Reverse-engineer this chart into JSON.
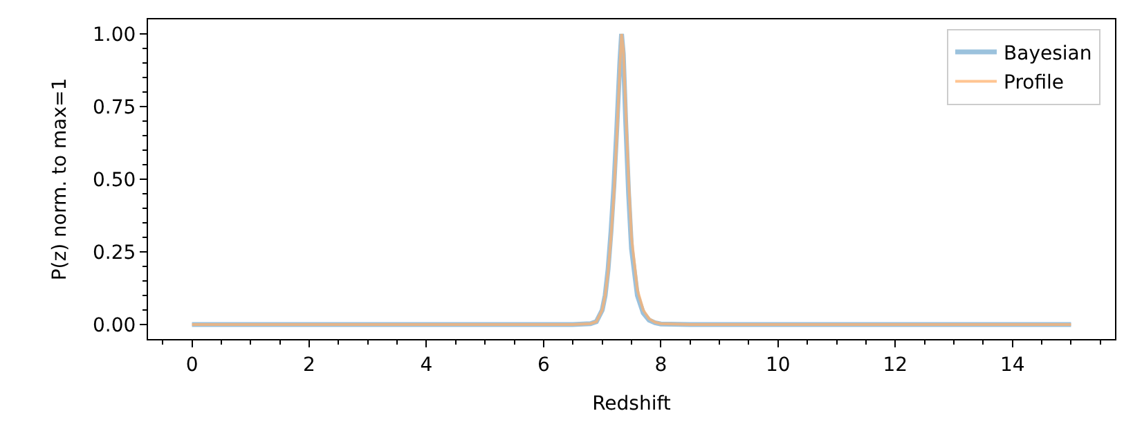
{
  "chart_data": {
    "type": "line",
    "xlabel": "Redshift",
    "ylabel": "P(z) norm. to max=1",
    "x": [
      0,
      6.5,
      6.8,
      6.9,
      7.0,
      7.05,
      7.1,
      7.15,
      7.2,
      7.25,
      7.3,
      7.33,
      7.36,
      7.4,
      7.45,
      7.5,
      7.6,
      7.7,
      7.8,
      7.9,
      8.0,
      8.5,
      15
    ],
    "series": [
      {
        "name": "Bayesian",
        "color": "#79add2",
        "values": [
          0,
          0,
          0.003,
          0.01,
          0.05,
          0.1,
          0.19,
          0.32,
          0.48,
          0.68,
          0.9,
          1.0,
          0.93,
          0.7,
          0.45,
          0.26,
          0.1,
          0.04,
          0.015,
          0.006,
          0.002,
          0,
          0
        ]
      },
      {
        "name": "Profile",
        "color": "#ffb26e",
        "values": [
          0,
          0,
          0.003,
          0.01,
          0.05,
          0.1,
          0.18,
          0.3,
          0.45,
          0.65,
          0.88,
          1.0,
          0.95,
          0.75,
          0.5,
          0.3,
          0.12,
          0.05,
          0.02,
          0.008,
          0.003,
          0,
          0
        ]
      }
    ],
    "xlim": [
      -0.75,
      15.75
    ],
    "ylim": [
      -0.05,
      1.05
    ],
    "xticks": [
      0,
      2,
      4,
      6,
      8,
      10,
      12,
      14,
      {
        "value": -0.5,
        "label": null
      },
      {
        "value": 0.5,
        "label": null
      },
      {
        "value": 1,
        "label": null
      },
      {
        "value": 1.5,
        "label": null
      },
      {
        "value": 2.5,
        "label": null
      },
      {
        "value": 3,
        "label": null
      },
      {
        "value": 3.5,
        "label": null
      },
      {
        "value": 4.5,
        "label": null
      },
      {
        "value": 5,
        "label": null
      },
      {
        "value": 5.5,
        "label": null
      },
      {
        "value": 6.5,
        "label": null
      },
      {
        "value": 7,
        "label": null
      },
      {
        "value": 7.5,
        "label": null
      },
      {
        "value": 8.5,
        "label": null
      },
      {
        "value": 9,
        "label": null
      },
      {
        "value": 9.5,
        "label": null
      },
      {
        "value": 10.5,
        "label": null
      },
      {
        "value": 11,
        "label": null
      },
      {
        "value": 11.5,
        "label": null
      },
      {
        "value": 12.5,
        "label": null
      },
      {
        "value": 13,
        "label": null
      },
      {
        "value": 13.5,
        "label": null
      },
      {
        "value": 14.5,
        "label": null
      },
      {
        "value": 15,
        "label": null
      },
      {
        "value": 15.5,
        "label": null
      }
    ],
    "yticks": [
      {
        "value": 0,
        "label": "0.00"
      },
      {
        "value": 0.25,
        "label": "0.25"
      },
      {
        "value": 0.5,
        "label": "0.50"
      },
      {
        "value": 0.75,
        "label": "0.75"
      },
      {
        "value": 1,
        "label": "1.00"
      },
      {
        "value": 0.05,
        "label": null
      },
      {
        "value": 0.1,
        "label": null
      },
      {
        "value": 0.15,
        "label": null
      },
      {
        "value": 0.2,
        "label": null
      },
      {
        "value": 0.3,
        "label": null
      },
      {
        "value": 0.35,
        "label": null
      },
      {
        "value": 0.4,
        "label": null
      },
      {
        "value": 0.45,
        "label": null
      },
      {
        "value": 0.55,
        "label": null
      },
      {
        "value": 0.6,
        "label": null
      },
      {
        "value": 0.65,
        "label": null
      },
      {
        "value": 0.7,
        "label": null
      },
      {
        "value": 0.8,
        "label": null
      },
      {
        "value": 0.85,
        "label": null
      },
      {
        "value": 0.9,
        "label": null
      },
      {
        "value": 0.95,
        "label": null
      }
    ],
    "legend": "top right",
    "marker": "none",
    "line_style": "solid"
  }
}
